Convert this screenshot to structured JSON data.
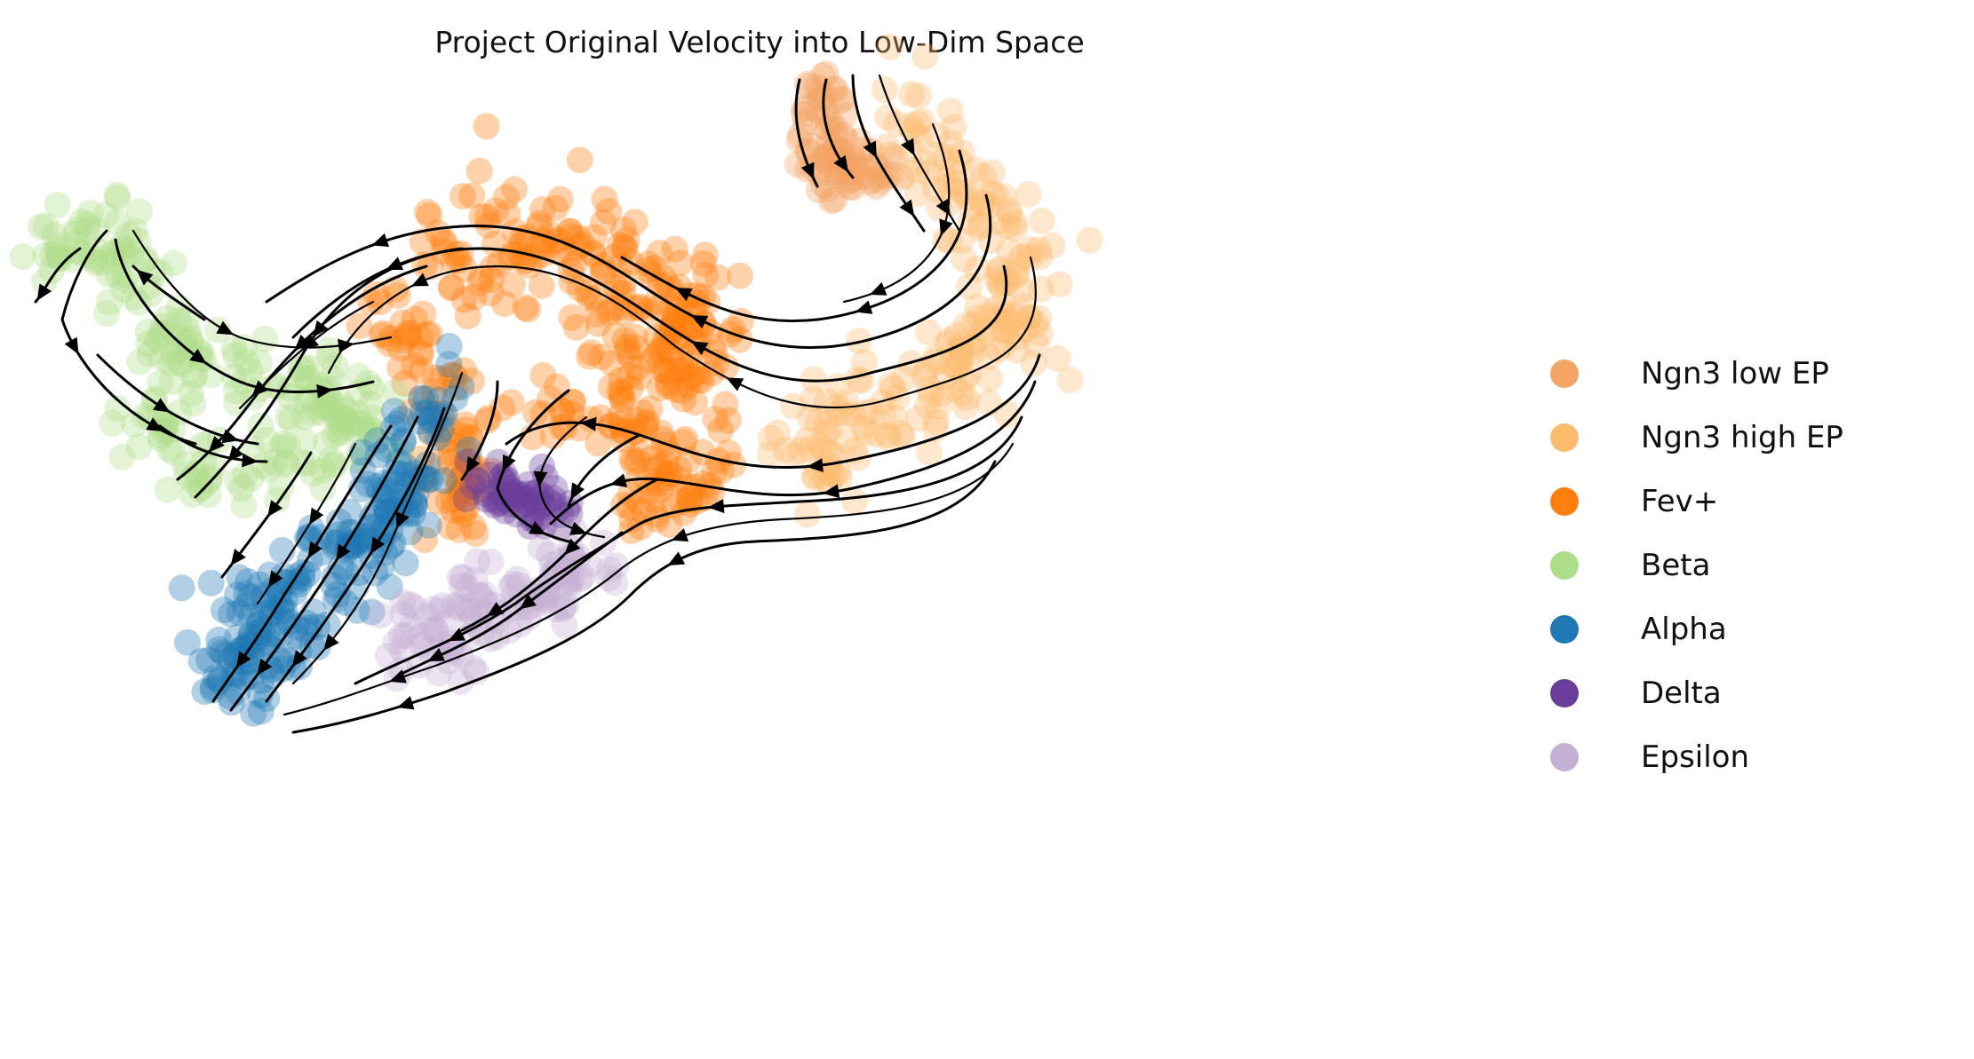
{
  "chart_data": {
    "type": "scatter",
    "title": "Project Original Velocity into Low-Dim Space",
    "xlabel": "",
    "ylabel": "",
    "axes_visible": false,
    "grid": false,
    "legend_position": "right",
    "overlay": "velocity streamlines with arrowheads (black)",
    "series": [
      {
        "name": "Ngn3 low EP",
        "color": "#f4a464"
      },
      {
        "name": "Ngn3 high EP",
        "color": "#fdbb6c"
      },
      {
        "name": "Fev+",
        "color": "#ff7f0e"
      },
      {
        "name": "Beta",
        "color": "#aedd8a"
      },
      {
        "name": "Alpha",
        "color": "#1f77b4"
      },
      {
        "name": "Delta",
        "color": "#6a3d9a"
      },
      {
        "name": "Epsilon",
        "color": "#c5b0d5"
      }
    ]
  }
}
